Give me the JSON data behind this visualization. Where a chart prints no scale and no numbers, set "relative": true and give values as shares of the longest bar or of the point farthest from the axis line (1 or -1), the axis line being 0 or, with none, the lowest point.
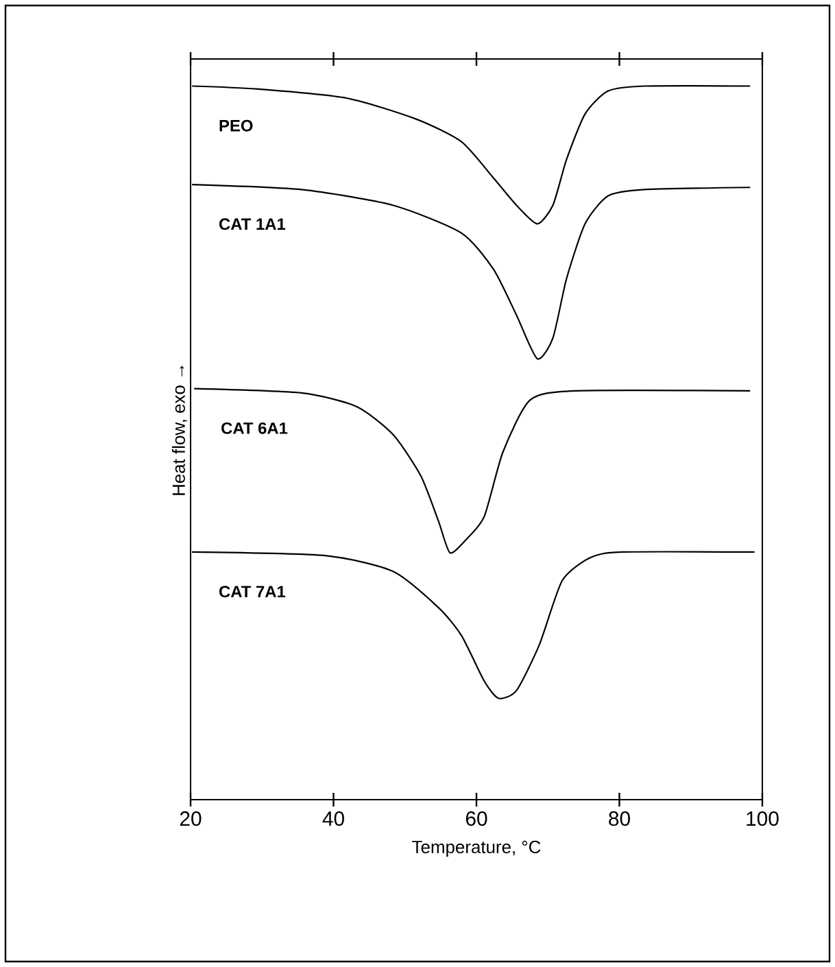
{
  "chart_data": {
    "type": "line",
    "relative": true,
    "xlabel": "Temperature, °C",
    "ylabel": "Heat flow, exo →",
    "xlim": [
      20,
      100
    ],
    "xticks": [
      20,
      40,
      60,
      80,
      100
    ],
    "grid": false,
    "legend": false,
    "marker": "none",
    "line_style": "solid",
    "series": [
      {
        "name": "PEO",
        "color": "#000000",
        "x": [
          20.2,
          29.2,
          41.9,
          51.5,
          57.9,
          62.4,
          65.6,
          68.5,
          70.7,
          72.6,
          75.2,
          78.4,
          83.5,
          98.3
        ],
        "values": [
          1.0,
          0.996,
          0.983,
          0.954,
          0.922,
          0.871,
          0.833,
          0.807,
          0.833,
          0.897,
          0.961,
          0.993,
          1.0,
          1.0
        ]
      },
      {
        "name": "CAT 1A1",
        "color": "#000000",
        "x": [
          20.2,
          35.5,
          48.3,
          57.9,
          62.4,
          65.6,
          68.5,
          70.7,
          72.6,
          75.2,
          78.4,
          83.5,
          98.3
        ],
        "values": [
          0.862,
          0.855,
          0.833,
          0.794,
          0.743,
          0.679,
          0.618,
          0.647,
          0.73,
          0.807,
          0.846,
          0.855,
          0.858
        ]
      },
      {
        "name": "CAT 6A1",
        "color": "#000000",
        "x": [
          20.5,
          35.5,
          43.2,
          48.3,
          52.2,
          54.7,
          56.3,
          58.6,
          61.1,
          63.7,
          67.5,
          73.9,
          98.3
        ],
        "values": [
          0.576,
          0.57,
          0.551,
          0.512,
          0.454,
          0.39,
          0.346,
          0.365,
          0.397,
          0.487,
          0.56,
          0.573,
          0.573
        ]
      },
      {
        "name": "CAT 7A1",
        "color": "#000000",
        "x": [
          20.2,
          38.8,
          48.3,
          54.7,
          57.9,
          61.1,
          63.1,
          65.6,
          68.8,
          72.0,
          75.9,
          80.3,
          98.9
        ],
        "values": [
          0.347,
          0.342,
          0.32,
          0.269,
          0.23,
          0.166,
          0.142,
          0.153,
          0.217,
          0.307,
          0.339,
          0.347,
          0.347
        ]
      }
    ]
  }
}
